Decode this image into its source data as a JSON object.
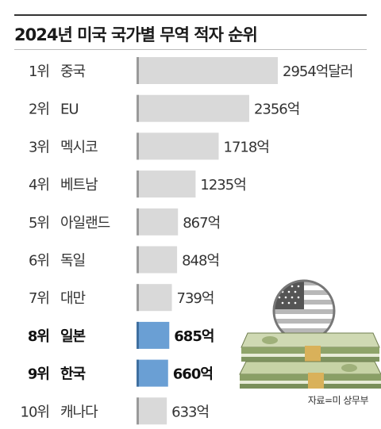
{
  "chart_data": {
    "type": "bar",
    "orientation": "horizontal",
    "title": "2024년 미국 국가별 무역 적자 순위",
    "unit": "억달러",
    "categories": [
      "중국",
      "EU",
      "멕시코",
      "베트남",
      "아일랜드",
      "독일",
      "대만",
      "일본",
      "한국",
      "캐나다"
    ],
    "ranks": [
      "1위",
      "2위",
      "3위",
      "4위",
      "5위",
      "6위",
      "7위",
      "8위",
      "9위",
      "10위"
    ],
    "values": [
      2954,
      2356,
      1718,
      1235,
      867,
      848,
      739,
      685,
      660,
      633
    ],
    "value_labels": [
      "2954억달러",
      "2356억",
      "1718억",
      "1235억",
      "867억",
      "848억",
      "739억",
      "685억",
      "660억",
      "633억"
    ],
    "highlighted": [
      "일본",
      "한국"
    ],
    "colors": {
      "bar": "#d9d9d9",
      "highlight": "#6a9fd4",
      "bar_edge": "#9a9a9a",
      "highlight_edge": "#3f6f9f"
    },
    "source": "자료=미 상무부"
  }
}
